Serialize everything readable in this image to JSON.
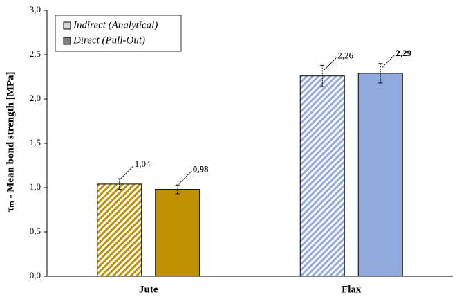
{
  "chart_data": {
    "type": "bar",
    "y_label": "τₘ - Mean bond strength [MPa]",
    "categories": [
      "Jute",
      "Flax"
    ],
    "category_colors": [
      "#bf9000",
      "#8faadc"
    ],
    "category_label_colors": [
      [
        "#a07d00",
        "#a07d00"
      ],
      [
        "#5b8bd1",
        "#2f5597"
      ]
    ],
    "series": [
      {
        "name": "Indirect (Analytical)",
        "color": "#d9d9d9",
        "hatch": true,
        "label_bold": false,
        "values": [
          1.04,
          2.26
        ],
        "value_labels": [
          "1,04",
          "2,26"
        ],
        "errors": [
          0.06,
          0.12
        ]
      },
      {
        "name": "Direct (Pull-Out)",
        "color": "#808080",
        "hatch": false,
        "label_bold": true,
        "values": [
          0.98,
          2.29
        ],
        "value_labels": [
          "0,98",
          "2,29"
        ],
        "errors": [
          0.05,
          0.11
        ]
      }
    ],
    "ylim": [
      0,
      3
    ],
    "yticks": [
      {
        "value": 0,
        "label": "0,0"
      },
      {
        "value": 0.5,
        "label": "0,5"
      },
      {
        "value": 1,
        "label": "1,0"
      },
      {
        "value": 1.5,
        "label": "1,5"
      },
      {
        "value": 2,
        "label": "2,0"
      },
      {
        "value": 2.5,
        "label": "2,5"
      },
      {
        "value": 3,
        "label": "3,0"
      }
    ],
    "grid": false,
    "legend": "top-left"
  }
}
